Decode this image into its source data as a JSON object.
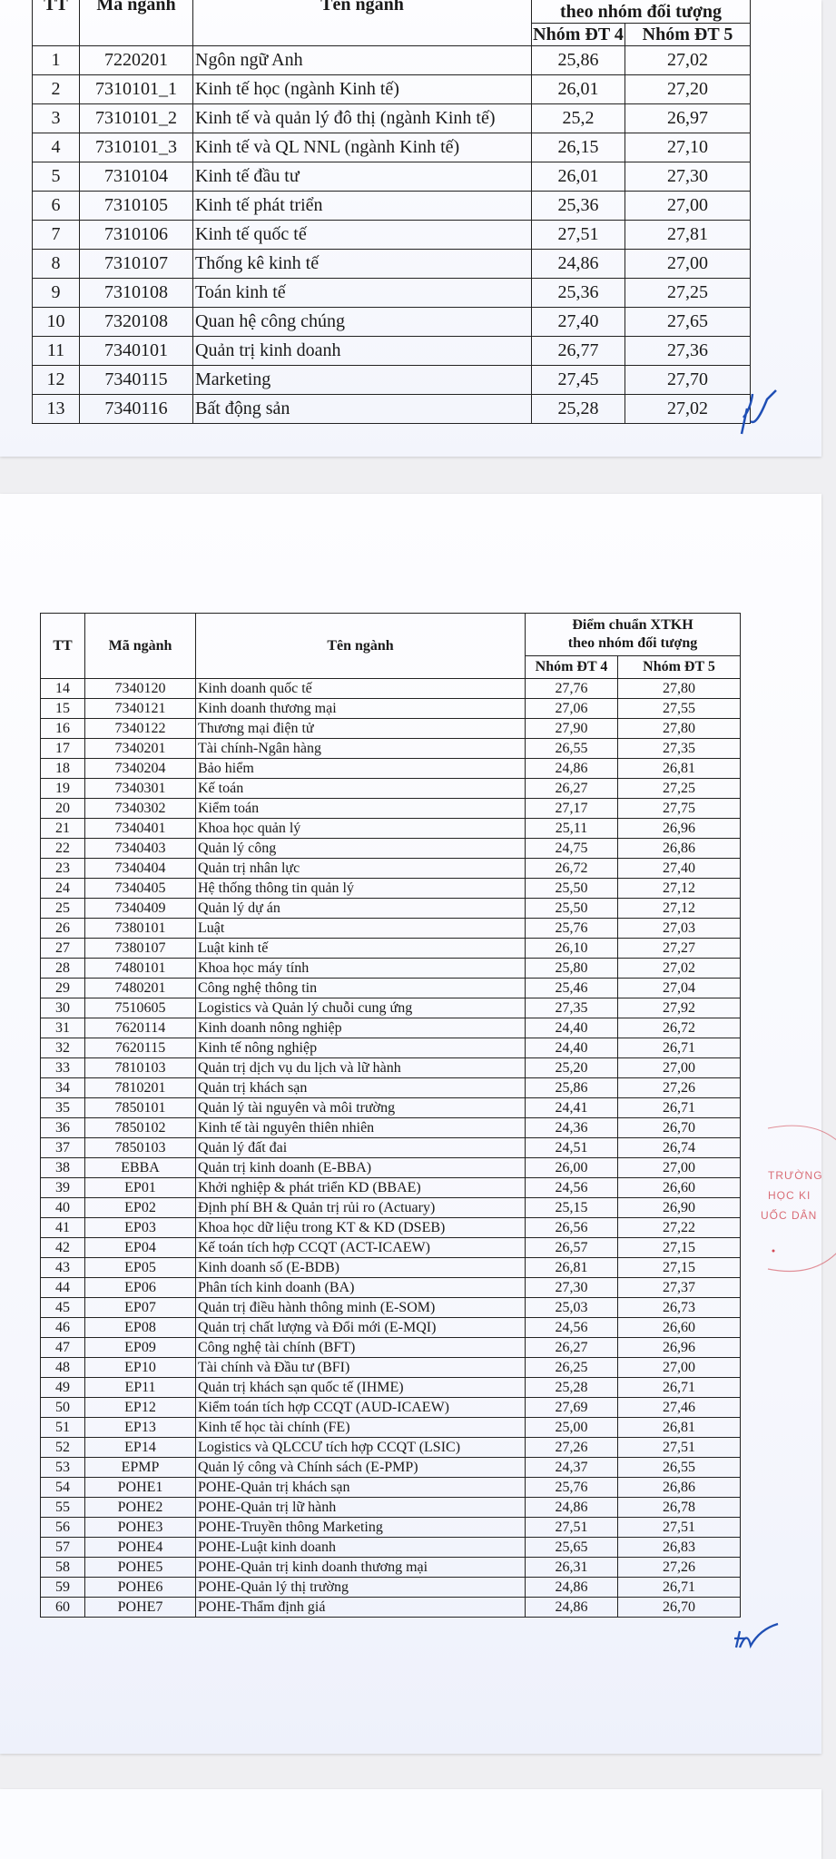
{
  "headers": {
    "tt": "TT",
    "code": "Mã ngành",
    "name": "Tên ngành",
    "group_title_line1": "Điểm chuẩn XTKH",
    "group_title_line2": "theo nhóm đối tượng",
    "group4": "Nhóm ĐT 4",
    "group5": "Nhóm ĐT 5"
  },
  "table1": [
    [
      "1",
      "7220201",
      "Ngôn ngữ Anh",
      "25,86",
      "27,02"
    ],
    [
      "2",
      "7310101_1",
      "Kinh tế học (ngành Kinh tế)",
      "26,01",
      "27,20"
    ],
    [
      "3",
      "7310101_2",
      "Kinh tế và quản lý đô thị (ngành Kinh tế)",
      "25,2",
      "26,97"
    ],
    [
      "4",
      "7310101_3",
      "Kinh tế và QL NNL (ngành Kinh tế)",
      "26,15",
      "27,10"
    ],
    [
      "5",
      "7310104",
      "Kinh tế đầu tư",
      "26,01",
      "27,30"
    ],
    [
      "6",
      "7310105",
      "Kinh tế phát triển",
      "25,36",
      "27,00"
    ],
    [
      "7",
      "7310106",
      "Kinh tế quốc tế",
      "27,51",
      "27,81"
    ],
    [
      "8",
      "7310107",
      "Thống kê kinh tế",
      "24,86",
      "27,00"
    ],
    [
      "9",
      "7310108",
      "Toán kinh tế",
      "25,36",
      "27,25"
    ],
    [
      "10",
      "7320108",
      "Quan hệ công chúng",
      "27,40",
      "27,65"
    ],
    [
      "11",
      "7340101",
      "Quản trị kinh doanh",
      "26,77",
      "27,36"
    ],
    [
      "12",
      "7340115",
      "Marketing",
      "27,45",
      "27,70"
    ],
    [
      "13",
      "7340116",
      "Bất động sản",
      "25,28",
      "27,02"
    ]
  ],
  "table2": [
    [
      "14",
      "7340120",
      "Kinh doanh quốc tế",
      "27,76",
      "27,80"
    ],
    [
      "15",
      "7340121",
      "Kinh doanh thương mại",
      "27,06",
      "27,55"
    ],
    [
      "16",
      "7340122",
      "Thương mại điện tử",
      "27,90",
      "27,80"
    ],
    [
      "17",
      "7340201",
      "Tài chính-Ngân hàng",
      "26,55",
      "27,35"
    ],
    [
      "18",
      "7340204",
      "Bảo hiểm",
      "24,86",
      "26,81"
    ],
    [
      "19",
      "7340301",
      "Kế toán",
      "26,27",
      "27,25"
    ],
    [
      "20",
      "7340302",
      "Kiểm toán",
      "27,17",
      "27,75"
    ],
    [
      "21",
      "7340401",
      "Khoa học quản lý",
      "25,11",
      "26,96"
    ],
    [
      "22",
      "7340403",
      "Quản lý công",
      "24,75",
      "26,86"
    ],
    [
      "23",
      "7340404",
      "Quản trị nhân lực",
      "26,72",
      "27,40"
    ],
    [
      "24",
      "7340405",
      "Hệ thống thông tin quản lý",
      "25,50",
      "27,12"
    ],
    [
      "25",
      "7340409",
      "Quản lý dự án",
      "25,50",
      "27,12"
    ],
    [
      "26",
      "7380101",
      "Luật",
      "25,76",
      "27,03"
    ],
    [
      "27",
      "7380107",
      "Luật kinh tế",
      "26,10",
      "27,27"
    ],
    [
      "28",
      "7480101",
      "Khoa học máy tính",
      "25,80",
      "27,02"
    ],
    [
      "29",
      "7480201",
      "Công nghệ thông tin",
      "25,46",
      "27,04"
    ],
    [
      "30",
      "7510605",
      "Logistics và Quản lý chuỗi cung ứng",
      "27,35",
      "27,92"
    ],
    [
      "31",
      "7620114",
      "Kinh doanh nông nghiệp",
      "24,40",
      "26,72"
    ],
    [
      "32",
      "7620115",
      "Kinh tế nông nghiệp",
      "24,40",
      "26,71"
    ],
    [
      "33",
      "7810103",
      "Quản trị dịch vụ du lịch và lữ hành",
      "25,20",
      "27,00"
    ],
    [
      "34",
      "7810201",
      "Quản trị khách sạn",
      "25,86",
      "27,26"
    ],
    [
      "35",
      "7850101",
      "Quản lý tài nguyên và môi trường",
      "24,41",
      "26,71"
    ],
    [
      "36",
      "7850102",
      "Kinh tế tài nguyên thiên nhiên",
      "24,36",
      "26,70"
    ],
    [
      "37",
      "7850103",
      "Quản lý đất đai",
      "24,51",
      "26,74"
    ],
    [
      "38",
      "EBBA",
      "Quản trị kinh doanh (E-BBA)",
      "26,00",
      "27,00"
    ],
    [
      "39",
      "EP01",
      "Khởi nghiệp & phát triển KD (BBAE)",
      "24,56",
      "26,60"
    ],
    [
      "40",
      "EP02",
      "Định phí BH & Quản trị rủi ro (Actuary)",
      "25,15",
      "26,90"
    ],
    [
      "41",
      "EP03",
      "Khoa học dữ liệu trong KT & KD (DSEB)",
      "26,56",
      "27,22"
    ],
    [
      "42",
      "EP04",
      "Kế toán tích hợp CCQT (ACT-ICAEW)",
      "26,57",
      "27,15"
    ],
    [
      "43",
      "EP05",
      "Kinh doanh số (E-BDB)",
      "26,81",
      "27,15"
    ],
    [
      "44",
      "EP06",
      "Phân tích kinh doanh (BA)",
      "27,30",
      "27,37"
    ],
    [
      "45",
      "EP07",
      "Quản trị điều hành thông minh (E-SOM)",
      "25,03",
      "26,73"
    ],
    [
      "46",
      "EP08",
      "Quản trị chất lượng và Đổi mới (E-MQI)",
      "24,56",
      "26,60"
    ],
    [
      "47",
      "EP09",
      "Công nghệ tài chính (BFT)",
      "26,27",
      "26,96"
    ],
    [
      "48",
      "EP10",
      "Tài chính và Đầu tư (BFI)",
      "26,25",
      "27,00"
    ],
    [
      "49",
      "EP11",
      "Quản trị khách sạn quốc tế (IHME)",
      "25,28",
      "26,71"
    ],
    [
      "50",
      "EP12",
      "Kiểm toán tích hợp CCQT (AUD-ICAEW)",
      "27,69",
      "27,46"
    ],
    [
      "51",
      "EP13",
      "Kinh tế học tài chính (FE)",
      "25,00",
      "26,81"
    ],
    [
      "52",
      "EP14",
      "Logistics và QLCCƯ tích hợp CCQT (LSIC)",
      "27,26",
      "27,51"
    ],
    [
      "53",
      "EPMP",
      "Quản lý công và Chính sách (E-PMP)",
      "24,37",
      "26,55"
    ],
    [
      "54",
      "POHE1",
      "POHE-Quản trị khách sạn",
      "25,76",
      "26,86"
    ],
    [
      "55",
      "POHE2",
      "POHE-Quản trị lữ hành",
      "24,86",
      "26,78"
    ],
    [
      "56",
      "POHE3",
      "POHE-Truyền thông Marketing",
      "27,51",
      "27,51"
    ],
    [
      "57",
      "POHE4",
      "POHE-Luật kinh doanh",
      "25,65",
      "26,83"
    ],
    [
      "58",
      "POHE5",
      "POHE-Quản trị kinh doanh thương mại",
      "26,31",
      "27,26"
    ],
    [
      "59",
      "POHE6",
      "POHE-Quản lý thị trường",
      "24,86",
      "26,71"
    ],
    [
      "60",
      "POHE7",
      "POHE-Thẩm định giá",
      "24,86",
      "26,70"
    ]
  ],
  "stamp": {
    "fragments": [
      "TRƯỜNG",
      "HỌC KI",
      "UỐC DÂN"
    ],
    "color": "#d24a55"
  },
  "colors": {
    "background": "#efeff2",
    "ink": "#1a1a1a",
    "signature": "#1f4fb5"
  }
}
